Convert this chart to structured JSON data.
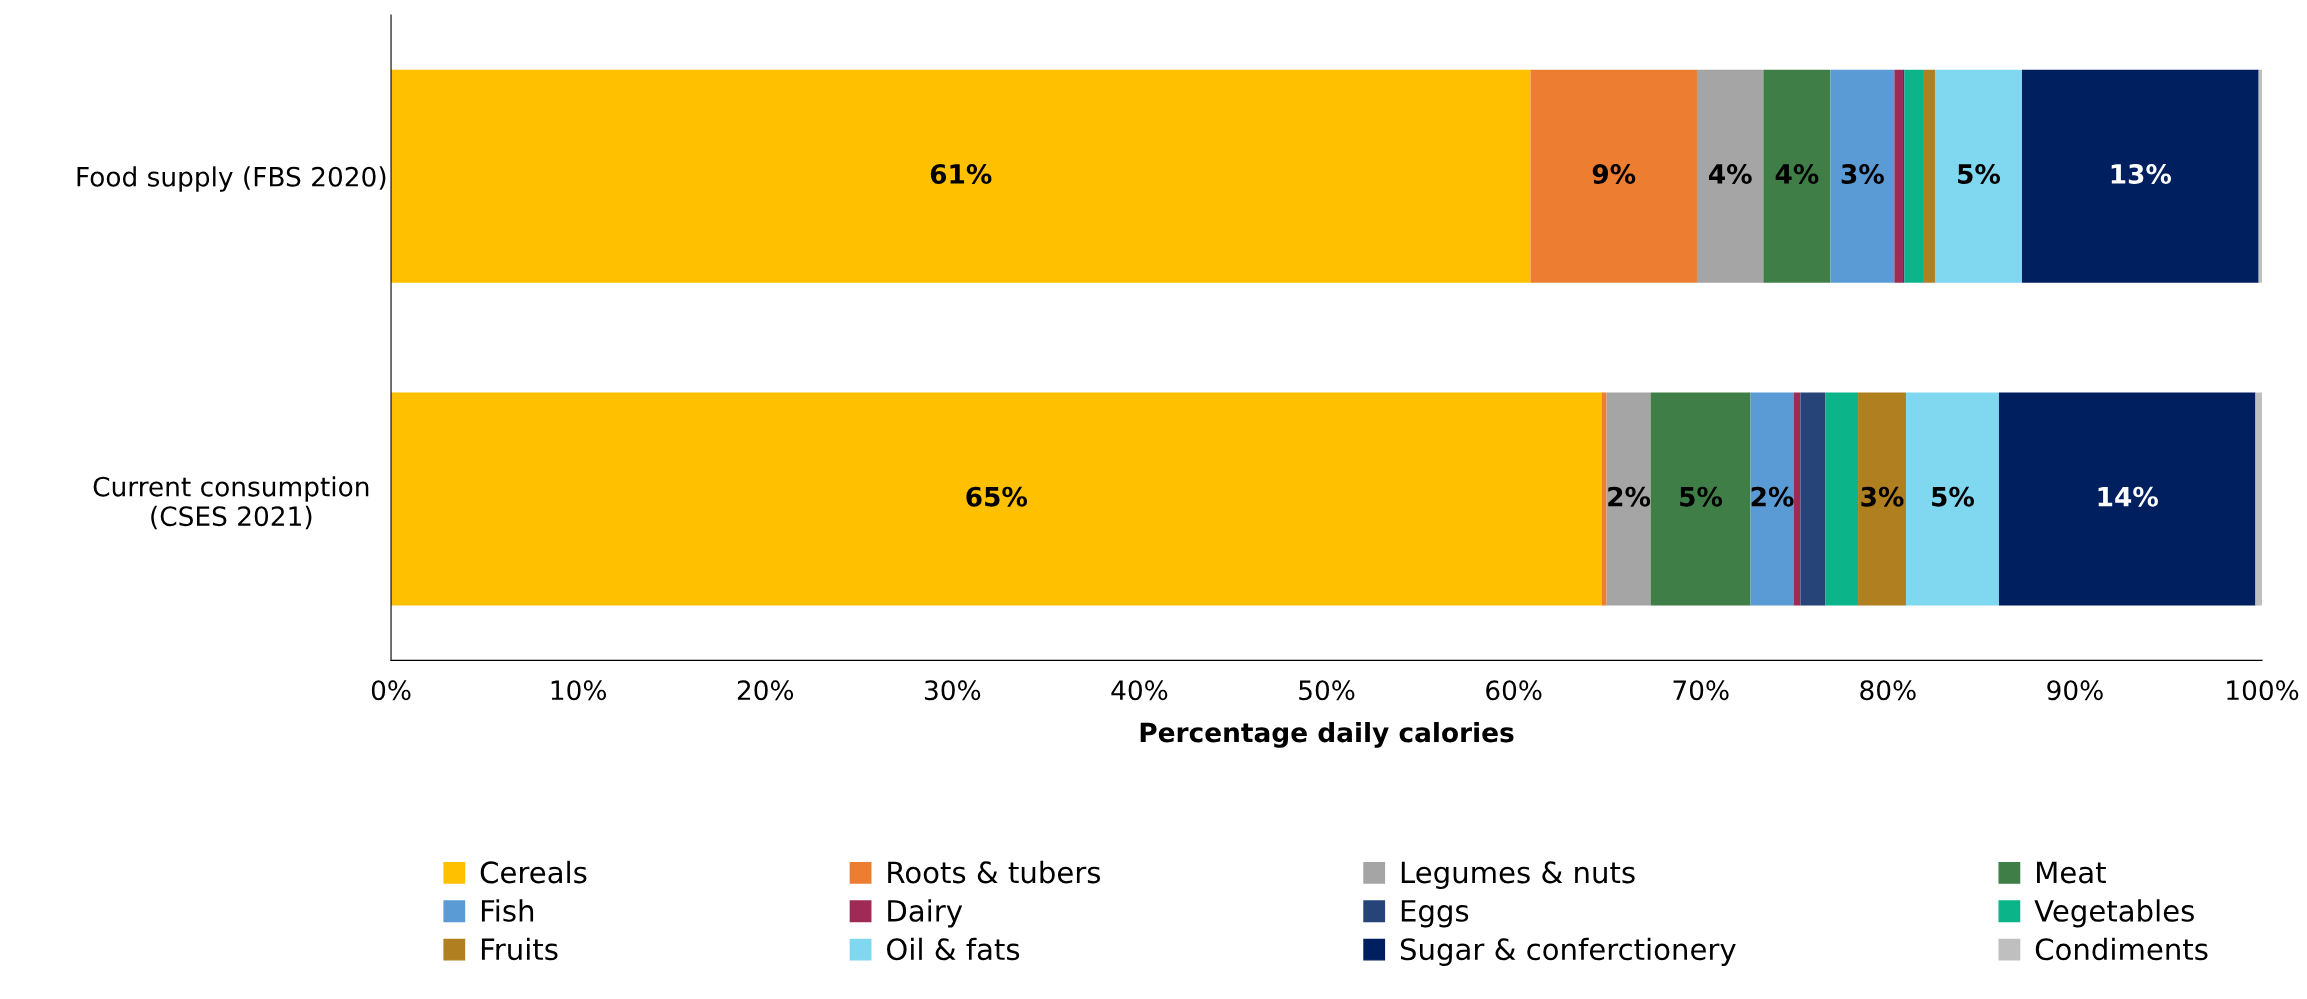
{
  "chart_data": {
    "type": "bar",
    "orientation": "horizontal",
    "stacked": true,
    "categories": [
      "Food supply (FBS 2020)",
      "Current consumption\n(CSES 2021)"
    ],
    "xlabel": "Percentage daily calories",
    "xlim": [
      0,
      100
    ],
    "xticks": [
      {
        "value": 0,
        "label": "0%"
      },
      {
        "value": 10,
        "label": "10%"
      },
      {
        "value": 20,
        "label": "20%"
      },
      {
        "value": 30,
        "label": "30%"
      },
      {
        "value": 40,
        "label": "40%"
      },
      {
        "value": 50,
        "label": "50%"
      },
      {
        "value": 60,
        "label": "60%"
      },
      {
        "value": 70,
        "label": "70%"
      },
      {
        "value": 80,
        "label": "80%"
      },
      {
        "value": 90,
        "label": "90%"
      },
      {
        "value": 100,
        "label": "100%"
      }
    ],
    "grid": false,
    "legend": "bottom",
    "series": [
      {
        "name": "Cereals",
        "color": "#ffc000",
        "values": [
          60.9,
          64.7
        ],
        "value_labels": [
          "61%",
          "65%"
        ]
      },
      {
        "name": "Roots & tubers",
        "color": "#ed7d31",
        "values": [
          8.9,
          0.27
        ],
        "value_labels": [
          "9%",
          null
        ]
      },
      {
        "name": "Legumes & nuts",
        "color": "#a5a5a5",
        "values": [
          3.55,
          2.35
        ],
        "value_labels": [
          "4%",
          "2%"
        ]
      },
      {
        "name": "Meat",
        "color": "#3f7f47",
        "values": [
          3.58,
          5.34
        ],
        "value_labels": [
          "4%",
          "5%"
        ]
      },
      {
        "name": "Fish",
        "color": "#5b9bd5",
        "values": [
          3.42,
          2.3
        ],
        "value_labels": [
          "3%",
          "2%"
        ]
      },
      {
        "name": "Dairy",
        "color": "#9e2a55",
        "values": [
          0.46,
          0.37
        ],
        "value_labels": [
          null,
          null
        ]
      },
      {
        "name": "Eggs",
        "color": "#264478",
        "values": [
          0.08,
          1.34
        ],
        "value_labels": [
          null,
          null
        ]
      },
      {
        "name": "Vegetables",
        "color": "#0bb489",
        "values": [
          1.04,
          1.74
        ],
        "value_labels": [
          null,
          null
        ]
      },
      {
        "name": "Fruits",
        "color": "#b07f20",
        "values": [
          0.59,
          2.56
        ],
        "value_labels": [
          null,
          "3%"
        ]
      },
      {
        "name": "Oil & fats",
        "color": "#7fd7f0",
        "values": [
          4.65,
          4.97
        ],
        "value_labels": [
          "5%",
          "5%"
        ]
      },
      {
        "name": "Sugar & conferctionery",
        "color": "#001f5f",
        "values": [
          12.65,
          13.71
        ],
        "value_labels": [
          "13%",
          "14%"
        ]
      },
      {
        "name": "Condiments",
        "color": "#bfbfbf",
        "values": [
          0.2,
          0.35
        ],
        "value_labels": [
          null,
          null
        ]
      }
    ]
  }
}
